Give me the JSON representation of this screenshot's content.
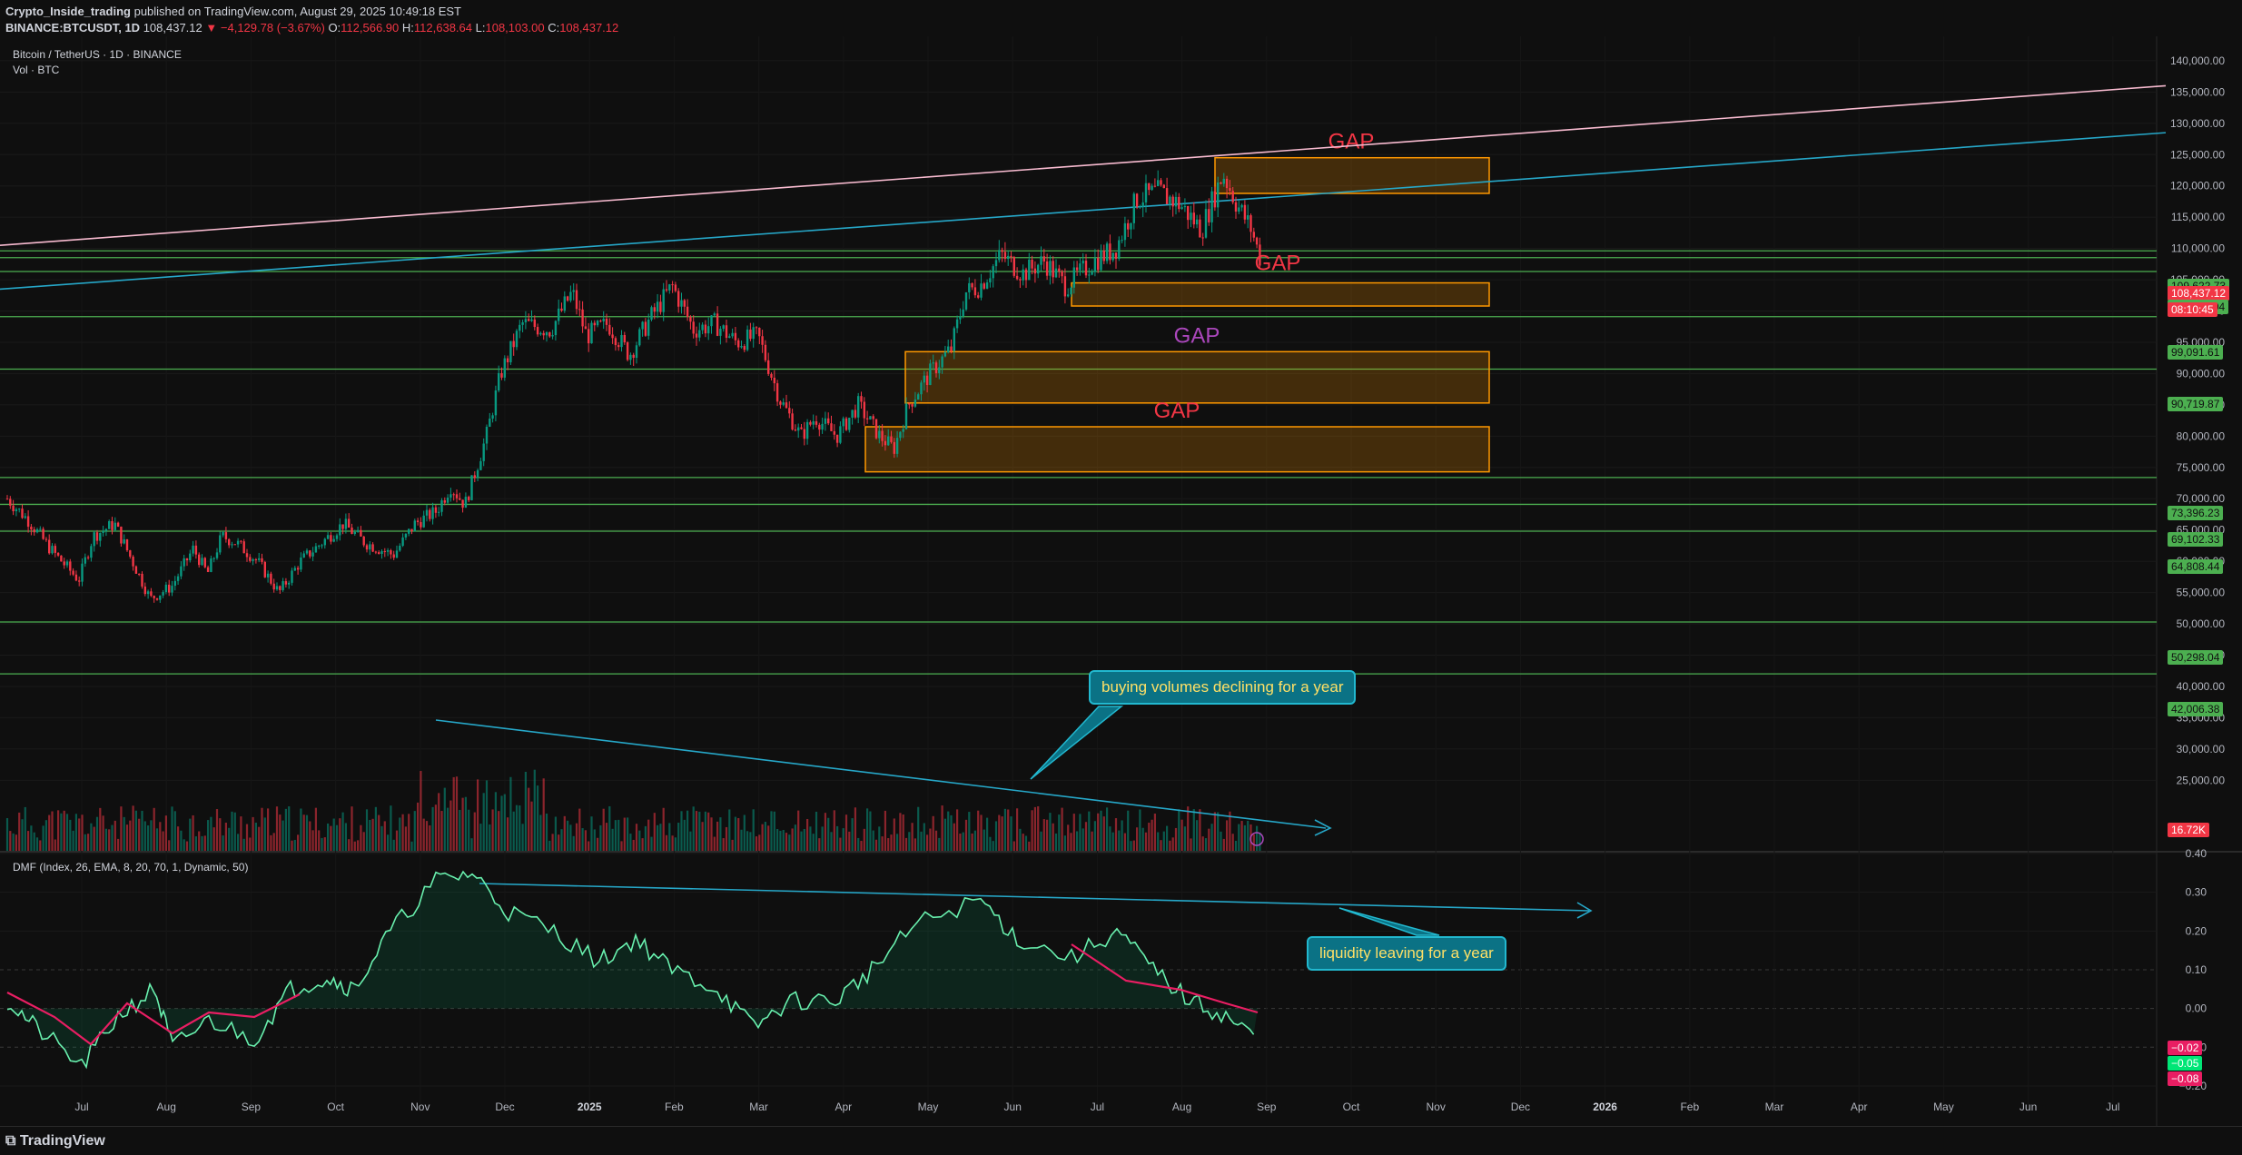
{
  "header": {
    "author": "Crypto_Inside_trading",
    "published_text": "published on TradingView.com, August 29, 2025 10:49:18 EST",
    "symbol": "BINANCE:BTCUSDT, 1D",
    "last_price": "108,437.12",
    "change": "−4,129.78 (−3.67%)",
    "open": "112,566.90",
    "high": "112,638.64",
    "low": "108,103.00",
    "close": "108,437.12"
  },
  "footer": {
    "logo_text": "TradingView"
  },
  "chart_data": {
    "type": "candlestick",
    "title": "Bitcoin / TetherUS · 1D · BINANCE",
    "volume_label": "Vol · BTC",
    "indicator_label": "DMF (Index, 26, EMA, 8, 20, 70, 1, Dynamic, 50)",
    "x_ticks": [
      "Jul",
      "Aug",
      "Sep",
      "Oct",
      "Nov",
      "Dec",
      "2025",
      "Feb",
      "Mar",
      "Apr",
      "May",
      "Jun",
      "Jul",
      "Aug",
      "Sep",
      "Oct",
      "Nov",
      "Dec",
      "2026",
      "Feb",
      "Mar",
      "Apr",
      "May",
      "Jun",
      "Jul"
    ],
    "price_ticks": [
      "140,000.00",
      "135,000.00",
      "130,000.00",
      "125,000.00",
      "120,000.00",
      "115,000.00",
      "110,000.00",
      "105,000.00",
      "100,000.00",
      "95,000.00",
      "90,000.00",
      "85,000.00",
      "80,000.00",
      "75,000.00",
      "70,000.00",
      "65,000.00",
      "60,000.00",
      "55,000.00",
      "50,000.00",
      "45,000.00",
      "40,000.00",
      "35,000.00",
      "30,000.00",
      "25,000.00"
    ],
    "price_range": [
      22000,
      141000
    ],
    "dmf_ticks": [
      "0.40",
      "0.30",
      "0.20",
      "0.10",
      "0.00",
      "−0.10",
      "−0.20"
    ],
    "dmf_range": [
      -0.24,
      0.4
    ],
    "price_path": [
      [
        0,
        70000
      ],
      [
        15,
        66500
      ],
      [
        30,
        62000
      ],
      [
        50,
        57000
      ],
      [
        60,
        64000
      ],
      [
        75,
        66000
      ],
      [
        100,
        54000
      ],
      [
        115,
        56000
      ],
      [
        130,
        62000
      ],
      [
        140,
        58000
      ],
      [
        150,
        64000
      ],
      [
        160,
        63000
      ],
      [
        175,
        60000
      ],
      [
        190,
        55000
      ],
      [
        205,
        60000
      ],
      [
        220,
        63000
      ],
      [
        235,
        66000
      ],
      [
        250,
        63000
      ],
      [
        270,
        61000
      ],
      [
        285,
        66000
      ],
      [
        300,
        68000
      ],
      [
        310,
        72000
      ],
      [
        320,
        69000
      ],
      [
        335,
        80000
      ],
      [
        345,
        90000
      ],
      [
        360,
        98000
      ],
      [
        380,
        97000
      ],
      [
        395,
        103000
      ],
      [
        405,
        96000
      ],
      [
        420,
        98000
      ],
      [
        435,
        93000
      ],
      [
        450,
        99000
      ],
      [
        465,
        104000
      ],
      [
        480,
        97000
      ],
      [
        495,
        98000
      ],
      [
        510,
        95000
      ],
      [
        525,
        96000
      ],
      [
        540,
        86000
      ],
      [
        555,
        80000
      ],
      [
        565,
        83000
      ],
      [
        580,
        80000
      ],
      [
        595,
        85000
      ],
      [
        610,
        80000
      ],
      [
        620,
        78000
      ],
      [
        630,
        85000
      ],
      [
        645,
        90000
      ],
      [
        660,
        94000
      ],
      [
        670,
        103000
      ],
      [
        680,
        104000
      ],
      [
        695,
        109000
      ],
      [
        710,
        106000
      ],
      [
        725,
        108000
      ],
      [
        740,
        104000
      ],
      [
        760,
        108000
      ],
      [
        775,
        110000
      ],
      [
        790,
        118000
      ],
      [
        805,
        119000
      ],
      [
        820,
        117000
      ],
      [
        835,
        113000
      ],
      [
        850,
        122000
      ],
      [
        860,
        117000
      ],
      [
        870,
        113000
      ],
      [
        876,
        108437
      ]
    ],
    "price_levels": [
      {
        "value": 109622.73,
        "label": "109,622.73",
        "color": "#4caf50"
      },
      {
        "value": 108528.67,
        "label": "108,528.67",
        "color": "#4caf50"
      },
      {
        "value": 108437.12,
        "label": "108,437.12",
        "color": "#f23645"
      },
      {
        "value": 106311.94,
        "label": "106,311.94",
        "color": "#4caf50"
      },
      {
        "value": 99091.61,
        "label": "99,091.61",
        "color": "#4caf50"
      },
      {
        "value": 90719.87,
        "label": "90,719.87",
        "color": "#4caf50"
      },
      {
        "value": 73396.23,
        "label": "73,396.23",
        "color": "#4caf50"
      },
      {
        "value": 69102.33,
        "label": "69,102.33",
        "color": "#4caf50"
      },
      {
        "value": 64808.44,
        "label": "64,808.44",
        "color": "#4caf50"
      },
      {
        "value": 50298.04,
        "label": "50,298.04",
        "color": "#4caf50"
      },
      {
        "value": 42006.38,
        "label": "42,006.38",
        "color": "#4caf50"
      }
    ],
    "countdown": "08:10:45",
    "volume_last": "16.72K",
    "dmf_levels": [
      {
        "value": -0.02,
        "label": "−0.02",
        "color": "#e91e63"
      },
      {
        "value": -0.05,
        "label": "−0.05",
        "color": "#00e676"
      },
      {
        "value": -0.08,
        "label": "−0.08",
        "color": "#e91e63"
      }
    ],
    "gap_zones": [
      {
        "label": "GAP",
        "top": 124500,
        "bottom": 118800,
        "label_color": "#f23645"
      },
      {
        "label": "GAP",
        "top": 104500,
        "bottom": 100800,
        "label_color": "#f23645"
      },
      {
        "label": "GAP",
        "top": 93500,
        "bottom": 85300,
        "label_color": "#ab47bc"
      },
      {
        "label": "GAP",
        "top": 81500,
        "bottom": 74300,
        "label_color": "#f23645"
      }
    ],
    "annotations": [
      {
        "text": "buying volumes declining for a year"
      },
      {
        "text": "liquidity leaving for a year"
      }
    ]
  },
  "colors": {
    "background": "#0f0f0f",
    "bull": "#089981",
    "bear": "#f23645",
    "level_line": "#4caf50",
    "trend_cyan": "#26a7c8",
    "trend_pink": "#f8bbd0",
    "gap_border": "#ff9800",
    "dmf_up": "#69f0ae",
    "dmf_down": "#e91e63"
  }
}
